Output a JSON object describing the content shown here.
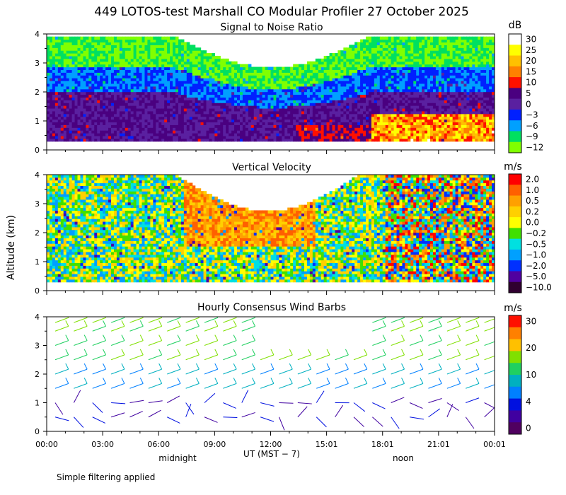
{
  "title": "449 LOTOS-test Marshall CO Modular Profiler 27 October 2025",
  "footer": "Simple filtering applied",
  "colors": {
    "axis": "#000000",
    "background": "#ffffff"
  },
  "chart_data": [
    {
      "type": "heatmap",
      "title": "Signal to Noise Ratio",
      "unit": "dB",
      "ylabel": "",
      "yticks": [
        "0",
        "1",
        "2",
        "3",
        "4"
      ],
      "ylim": [
        0,
        4
      ],
      "x_tick_labels": [
        "00:00",
        "03:00",
        "06:00",
        "09:00",
        "12:00",
        "15:01",
        "18:01",
        "21:01",
        "00:01"
      ],
      "colorbar_labels": [
        "30",
        "25",
        "20",
        "15",
        "10",
        "5",
        "0",
        "−3",
        "−6",
        "−9",
        "−12"
      ],
      "colorbar_colors": [
        "#ffffff",
        "#ffff00",
        "#ffc000",
        "#ff8000",
        "#ff1000",
        "#4a0080",
        "#5a20a0",
        "#0020ff",
        "#00a0ff",
        "#00e060",
        "#80ff00"
      ],
      "approx_field_description_levels_dB": {
        "near_surface": 5,
        "mid_layer": 0,
        "upper": -9
      }
    },
    {
      "type": "heatmap",
      "title": "Vertical Velocity",
      "unit": "m/s",
      "ylabel": "Altitude (km)",
      "yticks": [
        "0",
        "1",
        "2",
        "3",
        "4"
      ],
      "ylim": [
        0,
        4
      ],
      "x_tick_labels": [
        "00:00",
        "03:00",
        "06:00",
        "09:00",
        "12:00",
        "15:01",
        "18:01",
        "21:01",
        "00:01"
      ],
      "colorbar_labels": [
        "2.0",
        "1.0",
        "0.5",
        "0.2",
        "0.0",
        "−0.2",
        "−0.5",
        "−1.0",
        "−2.0",
        "−5.0",
        "−10.0"
      ],
      "colorbar_colors": [
        "#ff0000",
        "#ff6000",
        "#ffa000",
        "#ffd000",
        "#ffff00",
        "#40e000",
        "#00e0e0",
        "#00a0ff",
        "#0030ff",
        "#5000a0",
        "#300030"
      ]
    },
    {
      "type": "scatter",
      "title": "Hourly Consensus Wind Barbs",
      "unit": "m/s",
      "ylabel": "",
      "yticks": [
        "0",
        "1",
        "2",
        "3",
        "4"
      ],
      "ylim": [
        0,
        4
      ],
      "x_tick_labels": [
        "00:00",
        "03:00",
        "06:00",
        "09:00",
        "12:00",
        "15:01",
        "18:01",
        "21:01",
        "00:01"
      ],
      "colorbar_labels": [
        "30",
        "20",
        "10",
        "4",
        "0"
      ],
      "colorbar_colors": [
        "#ff1000",
        "#ff8000",
        "#ffc000",
        "#80e000",
        "#20d060",
        "#00b0c0",
        "#0080ff",
        "#0010e0",
        "#4000a0",
        "#500060"
      ],
      "levels_km": [
        0.5,
        1.0,
        1.5,
        2.0,
        2.5,
        3.0,
        3.5
      ]
    }
  ],
  "x_axis": {
    "label": "UT  (MST − 7)",
    "sub_labels": [
      "midnight",
      "noon"
    ]
  }
}
